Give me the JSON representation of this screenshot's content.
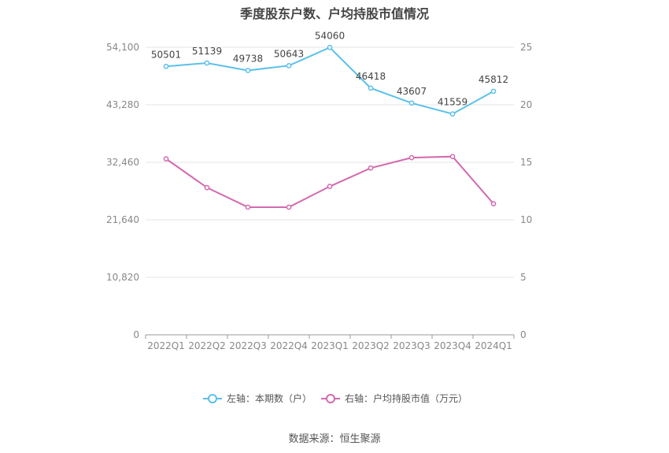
{
  "chart_data": {
    "type": "line",
    "title": "季度股东户数、户均持股市值情况",
    "categories": [
      "2022Q1",
      "2022Q2",
      "2022Q3",
      "2022Q4",
      "2023Q1",
      "2023Q2",
      "2023Q3",
      "2023Q4",
      "2024Q1"
    ],
    "series": [
      {
        "name": "左轴：本期数（户）",
        "axis": "left",
        "color": "#5bc0eb",
        "values": [
          50501,
          51139,
          49738,
          50643,
          54060,
          46418,
          43607,
          41559,
          45812
        ],
        "labels": [
          "50501",
          "51139",
          "49738",
          "50643",
          "54060",
          "46418",
          "43607",
          "41559",
          "45812"
        ]
      },
      {
        "name": "右轴：户均持股市值（万元）",
        "axis": "right",
        "color": "#d36aae",
        "values": [
          15.3,
          12.8,
          11.1,
          11.1,
          12.9,
          14.5,
          15.4,
          15.5,
          11.4
        ]
      }
    ],
    "y_left": {
      "ylim": [
        0,
        54100
      ],
      "ticks": [
        0,
        10820,
        21640,
        32460,
        43280,
        54100
      ],
      "tick_labels": [
        "0",
        "10,820",
        "21,640",
        "32,460",
        "43,280",
        "54,100"
      ]
    },
    "y_right": {
      "ylim": [
        0,
        25
      ],
      "ticks": [
        0,
        5,
        10,
        15,
        20,
        25
      ],
      "tick_labels": [
        "0",
        "5",
        "10",
        "15",
        "20",
        "25"
      ]
    },
    "grid": true,
    "legend_position": "bottom"
  },
  "source": "数据来源：恒生聚源"
}
